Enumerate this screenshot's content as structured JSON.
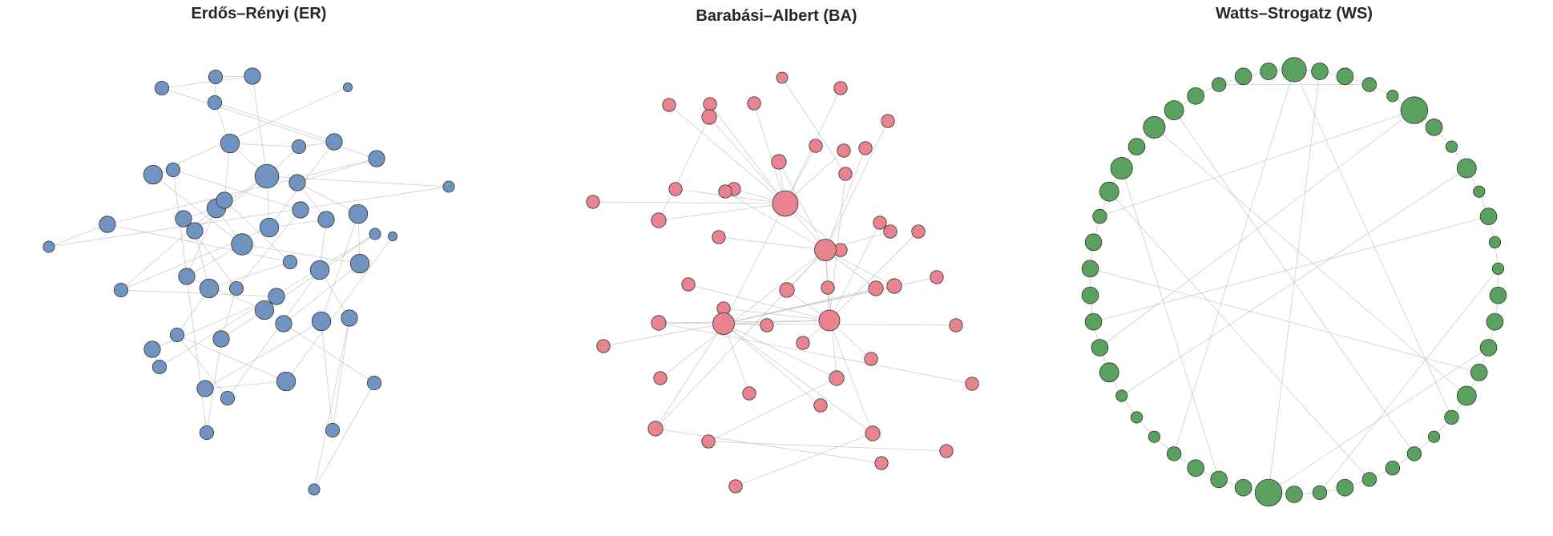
{
  "figure": {
    "panels": [
      {
        "id": "er",
        "title": "Erdős–Rényi (ER)",
        "node_color": "#7193bf",
        "nodes": [
          {
            "degree": 3
          },
          {
            "degree": 3
          },
          {
            "degree": 4
          },
          {
            "degree": 1
          },
          {
            "degree": 3
          },
          {
            "degree": 5
          },
          {
            "degree": 3
          },
          {
            "degree": 4
          },
          {
            "degree": 4
          },
          {
            "degree": 5
          },
          {
            "degree": 7
          },
          {
            "degree": 3
          },
          {
            "degree": 4
          },
          {
            "degree": 2
          },
          {
            "degree": 5
          },
          {
            "degree": 4
          },
          {
            "degree": 5
          },
          {
            "degree": 4
          },
          {
            "degree": 4
          },
          {
            "degree": 4
          },
          {
            "degree": 6
          },
          {
            "degree": 4
          },
          {
            "degree": 4
          },
          {
            "degree": 5
          },
          {
            "degree": 3
          },
          {
            "degree": 2
          },
          {
            "degree": 3
          },
          {
            "degree": 4
          },
          {
            "degree": 3
          },
          {
            "degree": 5
          },
          {
            "degree": 5
          },
          {
            "degree": 5
          },
          {
            "degree": 4
          },
          {
            "degree": 5
          },
          {
            "degree": 4
          },
          {
            "degree": 3
          },
          {
            "degree": 5
          },
          {
            "degree": 4
          },
          {
            "degree": 4
          },
          {
            "degree": 4
          },
          {
            "degree": 3
          },
          {
            "degree": 4
          },
          {
            "degree": 5
          },
          {
            "degree": 3
          },
          {
            "degree": 3
          },
          {
            "degree": 3
          },
          {
            "degree": 3
          },
          {
            "degree": 2
          },
          {
            "degree": 2
          },
          {
            "degree": 1
          }
        ],
        "edges": [
          [
            0,
            2
          ],
          [
            0,
            8
          ],
          [
            1,
            2
          ],
          [
            1,
            4
          ],
          [
            2,
            10
          ],
          [
            3,
            9
          ],
          [
            4,
            7
          ],
          [
            4,
            5
          ],
          [
            5,
            10
          ],
          [
            5,
            15
          ],
          [
            6,
            10
          ],
          [
            6,
            7
          ],
          [
            7,
            16
          ],
          [
            8,
            17
          ],
          [
            9,
            20
          ],
          [
            10,
            14
          ],
          [
            10,
            16
          ],
          [
            11,
            19
          ],
          [
            11,
            9
          ],
          [
            12,
            23
          ],
          [
            12,
            22
          ],
          [
            13,
            10
          ],
          [
            14,
            20
          ],
          [
            15,
            24
          ],
          [
            16,
            26
          ],
          [
            17,
            25
          ],
          [
            18,
            14
          ],
          [
            18,
            21
          ],
          [
            19,
            28
          ],
          [
            20,
            27
          ],
          [
            21,
            29
          ],
          [
            22,
            30
          ],
          [
            23,
            31
          ],
          [
            23,
            36
          ],
          [
            24,
            29
          ],
          [
            25,
            13
          ],
          [
            26,
            32
          ],
          [
            27,
            33
          ],
          [
            28,
            34
          ],
          [
            29,
            35
          ],
          [
            30,
            37
          ],
          [
            31,
            38
          ],
          [
            32,
            39
          ],
          [
            33,
            34
          ],
          [
            34,
            45
          ],
          [
            35,
            44
          ],
          [
            36,
            41
          ],
          [
            37,
            46
          ],
          [
            38,
            43
          ],
          [
            39,
            40
          ],
          [
            40,
            48
          ],
          [
            41,
            42
          ],
          [
            42,
            49
          ],
          [
            43,
            47
          ],
          [
            44,
            30
          ],
          [
            45,
            11
          ],
          [
            46,
            36
          ],
          [
            47,
            37
          ],
          [
            48,
            33
          ],
          [
            16,
            22
          ],
          [
            20,
            31
          ],
          [
            5,
            6
          ],
          [
            12,
            8
          ],
          [
            15,
            26
          ],
          [
            24,
            17
          ],
          [
            28,
            18
          ],
          [
            21,
            10
          ],
          [
            27,
            14
          ],
          [
            35,
            42
          ]
        ]
      },
      {
        "id": "ba",
        "title": "Barabási–Albert (BA)",
        "node_color": "#e8838f",
        "nodes": [
          {
            "degree": 1
          },
          {
            "degree": 2
          },
          {
            "degree": 2
          },
          {
            "degree": 2
          },
          {
            "degree": 2
          },
          {
            "degree": 2
          },
          {
            "degree": 3
          },
          {
            "degree": 2
          },
          {
            "degree": 2
          },
          {
            "degree": 3
          },
          {
            "degree": 2
          },
          {
            "degree": 2
          },
          {
            "degree": 2
          },
          {
            "degree": 2
          },
          {
            "degree": 3
          },
          {
            "degree": 17
          },
          {
            "degree": 2
          },
          {
            "degree": 2
          },
          {
            "degree": 2
          },
          {
            "degree": 2
          },
          {
            "degree": 2
          },
          {
            "degree": 2
          },
          {
            "degree": 10
          },
          {
            "degree": 2
          },
          {
            "degree": 2
          },
          {
            "degree": 2
          },
          {
            "degree": 3
          },
          {
            "degree": 2
          },
          {
            "degree": 2
          },
          {
            "degree": 3
          },
          {
            "degree": 2
          },
          {
            "degree": 2
          },
          {
            "degree": 3
          },
          {
            "degree": 9
          },
          {
            "degree": 10
          },
          {
            "degree": 2
          },
          {
            "degree": 2
          },
          {
            "degree": 3
          },
          {
            "degree": 2
          },
          {
            "degree": 2
          },
          {
            "degree": 3
          },
          {
            "degree": 2
          },
          {
            "degree": 3
          },
          {
            "degree": 2
          },
          {
            "degree": 3
          },
          {
            "degree": 2
          },
          {
            "degree": 2
          },
          {
            "degree": 2
          },
          {
            "degree": 2
          },
          {
            "degree": 2
          }
        ],
        "edges": [
          [
            0,
            16
          ],
          [
            1,
            15
          ],
          [
            2,
            15
          ],
          [
            3,
            15
          ],
          [
            4,
            15
          ],
          [
            5,
            15
          ],
          [
            6,
            15
          ],
          [
            6,
            14
          ],
          [
            7,
            22
          ],
          [
            8,
            15
          ],
          [
            9,
            15
          ],
          [
            9,
            22
          ],
          [
            10,
            15
          ],
          [
            11,
            22
          ],
          [
            12,
            15
          ],
          [
            13,
            15
          ],
          [
            14,
            15
          ],
          [
            16,
            33
          ],
          [
            17,
            22
          ],
          [
            18,
            22
          ],
          [
            19,
            15
          ],
          [
            20,
            33
          ],
          [
            21,
            22
          ],
          [
            23,
            34
          ],
          [
            24,
            33
          ],
          [
            25,
            33
          ],
          [
            26,
            34
          ],
          [
            26,
            22
          ],
          [
            27,
            34
          ],
          [
            28,
            34
          ],
          [
            29,
            33
          ],
          [
            29,
            22
          ],
          [
            30,
            34
          ],
          [
            31,
            33
          ],
          [
            32,
            34
          ],
          [
            32,
            33
          ],
          [
            35,
            33
          ],
          [
            36,
            33
          ],
          [
            37,
            34
          ],
          [
            37,
            22
          ],
          [
            38,
            33
          ],
          [
            39,
            34
          ],
          [
            40,
            22
          ],
          [
            40,
            34
          ],
          [
            41,
            34
          ],
          [
            42,
            34
          ],
          [
            42,
            33
          ],
          [
            43,
            22
          ],
          [
            44,
            22
          ],
          [
            44,
            34
          ],
          [
            45,
            40
          ],
          [
            46,
            42
          ],
          [
            47,
            44
          ],
          [
            48,
            45
          ],
          [
            49,
            32
          ],
          [
            15,
            22
          ],
          [
            15,
            34
          ],
          [
            22,
            33
          ],
          [
            33,
            34
          ]
        ]
      },
      {
        "id": "ws",
        "title": "Watts–Strogatz (WS)",
        "node_color": "#5aa05f",
        "ring_count": 50,
        "nodes": [
          {
            "degree": 7
          },
          {
            "degree": 4
          },
          {
            "degree": 4
          },
          {
            "degree": 3
          },
          {
            "degree": 2
          },
          {
            "degree": 8
          },
          {
            "degree": 4
          },
          {
            "degree": 2
          },
          {
            "degree": 5
          },
          {
            "degree": 2
          },
          {
            "degree": 4
          },
          {
            "degree": 2
          },
          {
            "degree": 2
          },
          {
            "degree": 4
          },
          {
            "degree": 4
          },
          {
            "degree": 4
          },
          {
            "degree": 4
          },
          {
            "degree": 5
          },
          {
            "degree": 3
          },
          {
            "degree": 2
          },
          {
            "degree": 3
          },
          {
            "degree": 3
          },
          {
            "degree": 3
          },
          {
            "degree": 4
          },
          {
            "degree": 3
          },
          {
            "degree": 4
          },
          {
            "degree": 8
          },
          {
            "degree": 4
          },
          {
            "degree": 4
          },
          {
            "degree": 4
          },
          {
            "degree": 3
          },
          {
            "degree": 2
          },
          {
            "degree": 2
          },
          {
            "degree": 2
          },
          {
            "degree": 5
          },
          {
            "degree": 4
          },
          {
            "degree": 4
          },
          {
            "degree": 4
          },
          {
            "degree": 4
          },
          {
            "degree": 4
          },
          {
            "degree": 3
          },
          {
            "degree": 5
          },
          {
            "degree": 6
          },
          {
            "degree": 4
          },
          {
            "degree": 6
          },
          {
            "degree": 5
          },
          {
            "degree": 4
          },
          {
            "degree": 3
          },
          {
            "degree": 4
          },
          {
            "degree": 4
          }
        ],
        "edges": [
          [
            0,
            30
          ],
          [
            0,
            18
          ],
          [
            5,
            40
          ],
          [
            5,
            35
          ],
          [
            10,
            36
          ],
          [
            12,
            24
          ],
          [
            20,
            45
          ],
          [
            26,
            1
          ],
          [
            44,
            17
          ],
          [
            42,
            28
          ],
          [
            8,
            33
          ],
          [
            3,
            47
          ],
          [
            15,
            26
          ],
          [
            22,
            41
          ],
          [
            16,
            38
          ]
        ]
      }
    ]
  }
}
